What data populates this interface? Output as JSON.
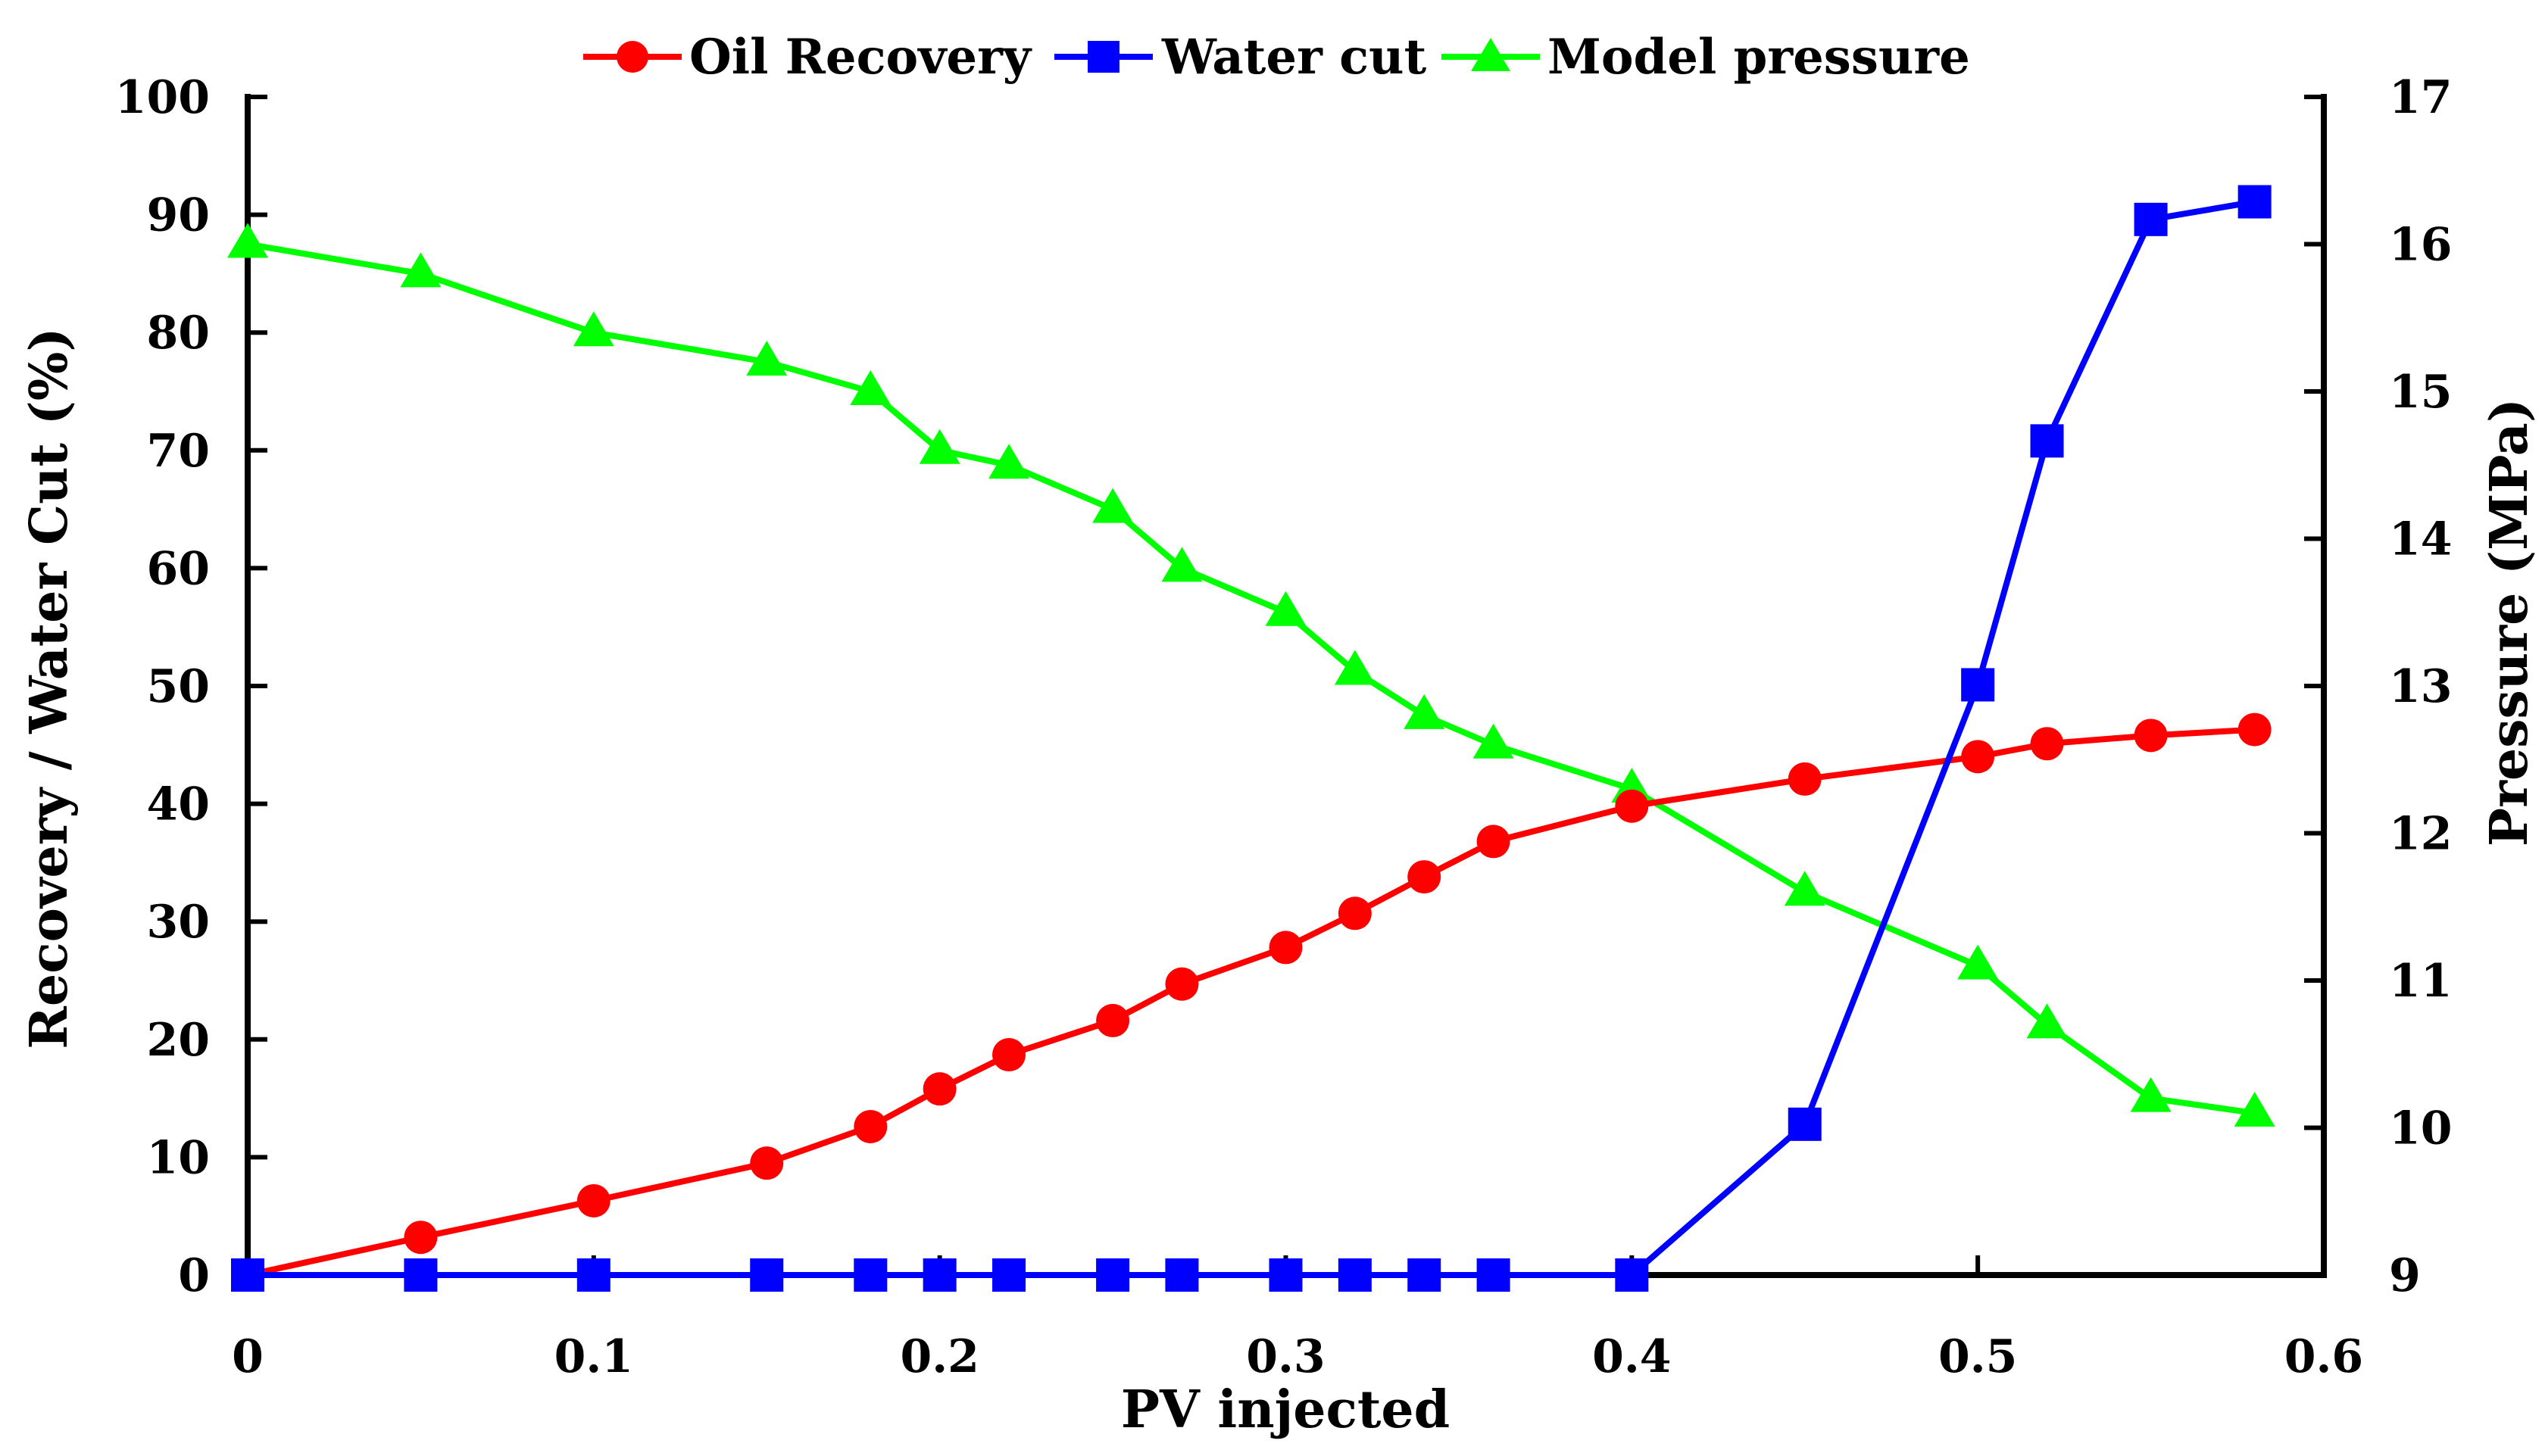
{
  "chart_data": {
    "type": "line",
    "title": "",
    "xlabel": "PV injected",
    "ylabel": "Recovery / Water Cut (%)",
    "y2label": "Pressure (MPa)",
    "xlim": [
      0,
      0.6
    ],
    "ylim": [
      0,
      100
    ],
    "y2lim": [
      9,
      17
    ],
    "x_ticks": [
      0,
      0.1,
      0.2,
      0.3,
      0.4,
      0.5,
      0.6
    ],
    "x_tick_labels": [
      "0",
      "0.1",
      "0.2",
      "0.3",
      "0.4",
      "0.5",
      "0.6"
    ],
    "y_ticks": [
      0,
      10,
      20,
      30,
      40,
      50,
      60,
      70,
      80,
      90,
      100
    ],
    "y_tick_labels": [
      "0",
      "10",
      "20",
      "30",
      "40",
      "50",
      "60",
      "70",
      "80",
      "90",
      "100"
    ],
    "y2_ticks": [
      9,
      10,
      11,
      12,
      13,
      14,
      15,
      16,
      17
    ],
    "y2_tick_labels": [
      "9",
      "10",
      "11",
      "12",
      "13",
      "14",
      "15",
      "16",
      "17"
    ],
    "grid": false,
    "legend_position": "top-center",
    "series": [
      {
        "name": "Oil Recovery",
        "axis": "left",
        "marker": "circle",
        "color": "#ff0000",
        "x": [
          0,
          0.05,
          0.1,
          0.15,
          0.18,
          0.2,
          0.22,
          0.25,
          0.27,
          0.3,
          0.32,
          0.34,
          0.36,
          0.4,
          0.45,
          0.5,
          0.52,
          0.55,
          0.58
        ],
        "values": [
          0,
          3.2,
          6.3,
          9.5,
          12.6,
          15.8,
          18.7,
          21.6,
          24.7,
          27.8,
          30.7,
          33.8,
          36.8,
          39.8,
          42.1,
          44.0,
          45.1,
          45.8,
          46.3
        ]
      },
      {
        "name": "Water cut",
        "axis": "left",
        "marker": "square",
        "color": "#0000ff",
        "x": [
          0,
          0.05,
          0.1,
          0.15,
          0.18,
          0.2,
          0.22,
          0.25,
          0.27,
          0.3,
          0.32,
          0.34,
          0.36,
          0.4,
          0.45,
          0.5,
          0.52,
          0.55,
          0.58
        ],
        "values": [
          0,
          0,
          0,
          0,
          0,
          0,
          0,
          0,
          0,
          0,
          0,
          0,
          0,
          0,
          12.8,
          50.1,
          70.8,
          89.6,
          91.1
        ]
      },
      {
        "name": "Model pressure",
        "axis": "right",
        "marker": "triangle",
        "color": "#00ff00",
        "x": [
          0,
          0.05,
          0.1,
          0.15,
          0.18,
          0.2,
          0.22,
          0.25,
          0.27,
          0.3,
          0.32,
          0.34,
          0.36,
          0.4,
          0.45,
          0.5,
          0.52,
          0.55,
          0.58
        ],
        "values": [
          16.0,
          15.8,
          15.4,
          15.2,
          15.0,
          14.6,
          14.5,
          14.2,
          13.8,
          13.5,
          13.1,
          12.8,
          12.6,
          12.3,
          11.6,
          11.1,
          10.7,
          10.2,
          10.1
        ]
      }
    ]
  }
}
